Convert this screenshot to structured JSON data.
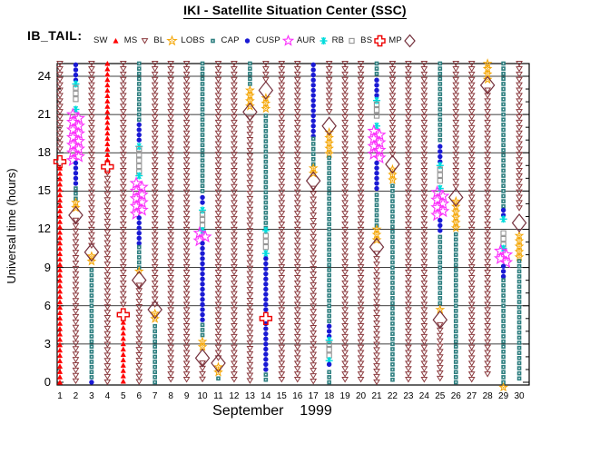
{
  "title": "IKI - Satellite Situation Center (SSC)",
  "dataset_label": "IB_TAIL:",
  "legend_items": [
    {
      "id": "SW",
      "label": "SW"
    },
    {
      "id": "MS",
      "label": "MS"
    },
    {
      "id": "BL",
      "label": "BL"
    },
    {
      "id": "LOBS",
      "label": "LOBS"
    },
    {
      "id": "CAP",
      "label": "CAP"
    },
    {
      "id": "CUSP",
      "label": "CUSP"
    },
    {
      "id": "AUR",
      "label": "AUR"
    },
    {
      "id": "RB",
      "label": "RB"
    },
    {
      "id": "BS",
      "label": "BS"
    },
    {
      "id": "MP",
      "label": "MP"
    }
  ],
  "colors": {
    "SW": "#ff0000",
    "MS": "#8b3a3e",
    "BL": "#f4a400",
    "LOBS": "#2e7f80",
    "CAP": "#1a1ad4",
    "CUSP": "#fb2efb",
    "AUR": "#00dcdc",
    "RB": "#949494",
    "BS": "#ee0000",
    "MP": "#74303c",
    "axis": "#000000"
  },
  "axes": {
    "y_label": "Universal time (hours)",
    "y_ticks": [
      0,
      3,
      6,
      9,
      12,
      15,
      18,
      21,
      24
    ],
    "y_minor_step": 1,
    "y_range": [
      0,
      25.2
    ],
    "x_label": "September    1999",
    "x_days": [
      1,
      2,
      3,
      4,
      5,
      6,
      7,
      8,
      9,
      10,
      11,
      12,
      13,
      14,
      15,
      16,
      17,
      18,
      19,
      20,
      21,
      22,
      23,
      24,
      25,
      26,
      27,
      28,
      29,
      30
    ]
  },
  "chart_data": {
    "type": "scatter",
    "title": "IKI - Satellite Situation Center (SSC)",
    "subtitle": "IB_TAIL satellite magnetospheric region vs universal time, September 1999",
    "xlabel": "September    1999",
    "ylabel": "Universal time (hours)",
    "ylim": [
      0,
      25.2
    ],
    "regions": [
      "SW",
      "MS",
      "BL",
      "LOBS",
      "CAP",
      "CUSP",
      "AUR",
      "RB",
      "BS",
      "MP"
    ],
    "days": [
      {
        "day": 1,
        "segments": [
          [
            "MS",
            25,
            18
          ],
          [
            "BS",
            17.3
          ],
          [
            "SW",
            16.8,
            0
          ]
        ]
      },
      {
        "day": 2,
        "segments": [
          [
            "CAP",
            24.9,
            23.7
          ],
          [
            "AUR",
            23.4
          ],
          [
            "RB",
            23.1,
            21.8
          ],
          [
            "AUR",
            21.4
          ],
          [
            "CUSP",
            21.0,
            17.4
          ],
          [
            "CAP",
            17.2,
            15.5
          ],
          [
            "LOBS",
            15.2,
            14.3
          ],
          [
            "BL",
            14.1,
            13.4
          ],
          [
            "MP",
            13.1
          ],
          [
            "MS",
            12.7,
            0
          ]
        ]
      },
      {
        "day": 3,
        "segments": [
          [
            "MS",
            25,
            10.6
          ],
          [
            "MP",
            10.2
          ],
          [
            "BL",
            9.9,
            9.1
          ],
          [
            "LOBS",
            8.8,
            0.2
          ],
          [
            "CAP",
            0
          ]
        ]
      },
      {
        "day": 4,
        "segments": [
          [
            "SW",
            25,
            17.3
          ],
          [
            "BS",
            16.9
          ],
          [
            "MS",
            16.4,
            0
          ]
        ]
      },
      {
        "day": 5,
        "segments": [
          [
            "MS",
            25,
            6.0
          ],
          [
            "BS",
            5.3
          ],
          [
            "SW",
            4.7,
            0
          ]
        ]
      },
      {
        "day": 6,
        "segments": [
          [
            "LOBS",
            25,
            20.4
          ],
          [
            "CAP",
            20.2,
            18.8
          ],
          [
            "AUR",
            18.5
          ],
          [
            "RB",
            18.3,
            16.5
          ],
          [
            "AUR",
            16.2
          ],
          [
            "CUSP",
            15.6,
            13.1
          ],
          [
            "CAP",
            12.9,
            10.9
          ],
          [
            "LOBS",
            10.6,
            8.9
          ],
          [
            "BL",
            8.7,
            8.4
          ],
          [
            "MP",
            8.0
          ],
          [
            "MS",
            7.6,
            0
          ]
        ]
      },
      {
        "day": 7,
        "segments": [
          [
            "MS",
            25,
            6.1
          ],
          [
            "MP",
            5.7
          ],
          [
            "BL",
            5.4,
            4.7
          ],
          [
            "LOBS",
            4.4,
            0
          ]
        ]
      },
      {
        "day": 8,
        "segments": [
          [
            "MS",
            25,
            0
          ]
        ]
      },
      {
        "day": 9,
        "segments": [
          [
            "MS",
            25,
            0
          ]
        ]
      },
      {
        "day": 10,
        "segments": [
          [
            "LOBS",
            25,
            14.7
          ],
          [
            "CAP",
            14.5,
            13.8
          ],
          [
            "AUR",
            13.5
          ],
          [
            "RB",
            13.2,
            12.2
          ],
          [
            "AUR",
            11.9
          ],
          [
            "CUSP",
            11.7,
            11.1
          ],
          [
            "CAP",
            10.9,
            4.8
          ],
          [
            "LOBS",
            4.5,
            3.4
          ],
          [
            "BL",
            3.2,
            2.4
          ],
          [
            "MP",
            1.9
          ],
          [
            "MS",
            1.5,
            0
          ]
        ]
      },
      {
        "day": 11,
        "segments": [
          [
            "MS",
            25,
            1.8
          ],
          [
            "MP",
            1.5
          ],
          [
            "BL",
            1.2,
            0.5
          ],
          [
            "LOBS",
            0.3,
            0
          ]
        ]
      },
      {
        "day": 12,
        "segments": [
          [
            "MS",
            25,
            0
          ]
        ]
      },
      {
        "day": 13,
        "segments": [
          [
            "LOBS",
            25,
            23.1
          ],
          [
            "BL",
            22.9,
            21.6
          ],
          [
            "MP",
            21.2
          ],
          [
            "MS",
            20.7,
            0
          ]
        ]
      },
      {
        "day": 14,
        "segments": [
          [
            "MS",
            25,
            23.4
          ],
          [
            "MP",
            22.9
          ],
          [
            "BL",
            22.3,
            21.2
          ],
          [
            "LOBS",
            20.9,
            12.1
          ],
          [
            "AUR",
            11.9
          ],
          [
            "RB",
            11.5,
            10.4
          ],
          [
            "AUR",
            10.1
          ],
          [
            "CAP",
            9.7,
            5.4
          ],
          [
            "BS",
            5.0
          ],
          [
            "CAP",
            4.6,
            1.0
          ],
          [
            "LOBS",
            0.6,
            0
          ]
        ]
      },
      {
        "day": 15,
        "segments": [
          [
            "MS",
            25,
            0
          ]
        ]
      },
      {
        "day": 16,
        "segments": [
          [
            "MS",
            25,
            0
          ]
        ]
      },
      {
        "day": 17,
        "segments": [
          [
            "CAP",
            24.9,
            19.3
          ],
          [
            "LOBS",
            19.1,
            17.0
          ],
          [
            "BL",
            16.8,
            16.1
          ],
          [
            "MP",
            15.8
          ],
          [
            "MS",
            15.2,
            0
          ]
        ]
      },
      {
        "day": 18,
        "segments": [
          [
            "MS",
            25,
            20.9
          ],
          [
            "MP",
            20.1
          ],
          [
            "BL",
            19.6,
            17.9
          ],
          [
            "LOBS",
            17.6,
            4.6
          ],
          [
            "CAP",
            4.4,
            3.6
          ],
          [
            "AUR",
            3.3
          ],
          [
            "RB",
            3.0,
            2.0
          ],
          [
            "AUR",
            1.7
          ],
          [
            "CAP",
            1.4,
            1.1
          ],
          [
            "LOBS",
            0.8,
            0
          ]
        ]
      },
      {
        "day": 19,
        "segments": [
          [
            "MS",
            25,
            0
          ]
        ]
      },
      {
        "day": 20,
        "segments": [
          [
            "MS",
            25,
            0
          ]
        ]
      },
      {
        "day": 21,
        "segments": [
          [
            "LOBS",
            25,
            23.9
          ],
          [
            "CAP",
            23.7,
            22.4
          ],
          [
            "AUR",
            22.1
          ],
          [
            "RB",
            21.8,
            20.5
          ],
          [
            "AUR",
            20.1
          ],
          [
            "CUSP",
            19.7,
            17.4
          ],
          [
            "CAP",
            17.2,
            14.9
          ],
          [
            "LOBS",
            14.7,
            12.3
          ],
          [
            "BL",
            12.0,
            11.0
          ],
          [
            "MP",
            10.6
          ],
          [
            "MS",
            10.1,
            0
          ]
        ]
      },
      {
        "day": 22,
        "segments": [
          [
            "MS",
            25,
            17.5
          ],
          [
            "MP",
            17.1
          ],
          [
            "BL",
            16.7,
            15.7
          ],
          [
            "LOBS",
            15.4,
            0
          ]
        ]
      },
      {
        "day": 23,
        "segments": [
          [
            "MS",
            25,
            0
          ]
        ]
      },
      {
        "day": 24,
        "segments": [
          [
            "MS",
            25,
            0
          ]
        ]
      },
      {
        "day": 25,
        "segments": [
          [
            "LOBS",
            25,
            18.7
          ],
          [
            "CAP",
            18.5,
            17.3
          ],
          [
            "AUR",
            17.0
          ],
          [
            "RB",
            16.7,
            15.5
          ],
          [
            "AUR",
            15.2
          ],
          [
            "CUSP",
            14.9,
            12.9
          ],
          [
            "CAP",
            12.7,
            11.6
          ],
          [
            "LOBS",
            11.4,
            5.9
          ],
          [
            "BL",
            5.7,
            5.3
          ],
          [
            "MP",
            4.9
          ],
          [
            "MS",
            4.5,
            0
          ]
        ]
      },
      {
        "day": 26,
        "segments": [
          [
            "MS",
            25,
            15.0
          ],
          [
            "MP",
            14.5
          ],
          [
            "BL",
            14.2,
            11.9
          ],
          [
            "LOBS",
            11.6,
            0
          ]
        ]
      },
      {
        "day": 27,
        "segments": [
          [
            "MS",
            25,
            0
          ]
        ]
      },
      {
        "day": 28,
        "segments": [
          [
            "BL",
            25,
            23.7
          ],
          [
            "MP",
            23.3
          ],
          [
            "MS",
            22.9,
            0.3
          ]
        ]
      },
      {
        "day": 29,
        "segments": [
          [
            "LOBS",
            25,
            13.7
          ],
          [
            "CAP",
            13.5,
            13.1
          ],
          [
            "AUR",
            12.8
          ],
          [
            "RB",
            11.7,
            10.7
          ],
          [
            "AUR",
            10.5
          ],
          [
            "CUSP",
            10.3,
            9.3
          ],
          [
            "CAP",
            9.1,
            8.3
          ],
          [
            "LOBS",
            8.0,
            0
          ],
          [
            "BL",
            -0.4
          ]
        ]
      },
      {
        "day": 30,
        "segments": [
          [
            "MS",
            25,
            13.3
          ],
          [
            "MP",
            12.5
          ],
          [
            "BL",
            11.5,
            9.8
          ],
          [
            "LOBS",
            9.5,
            0
          ]
        ]
      }
    ]
  }
}
